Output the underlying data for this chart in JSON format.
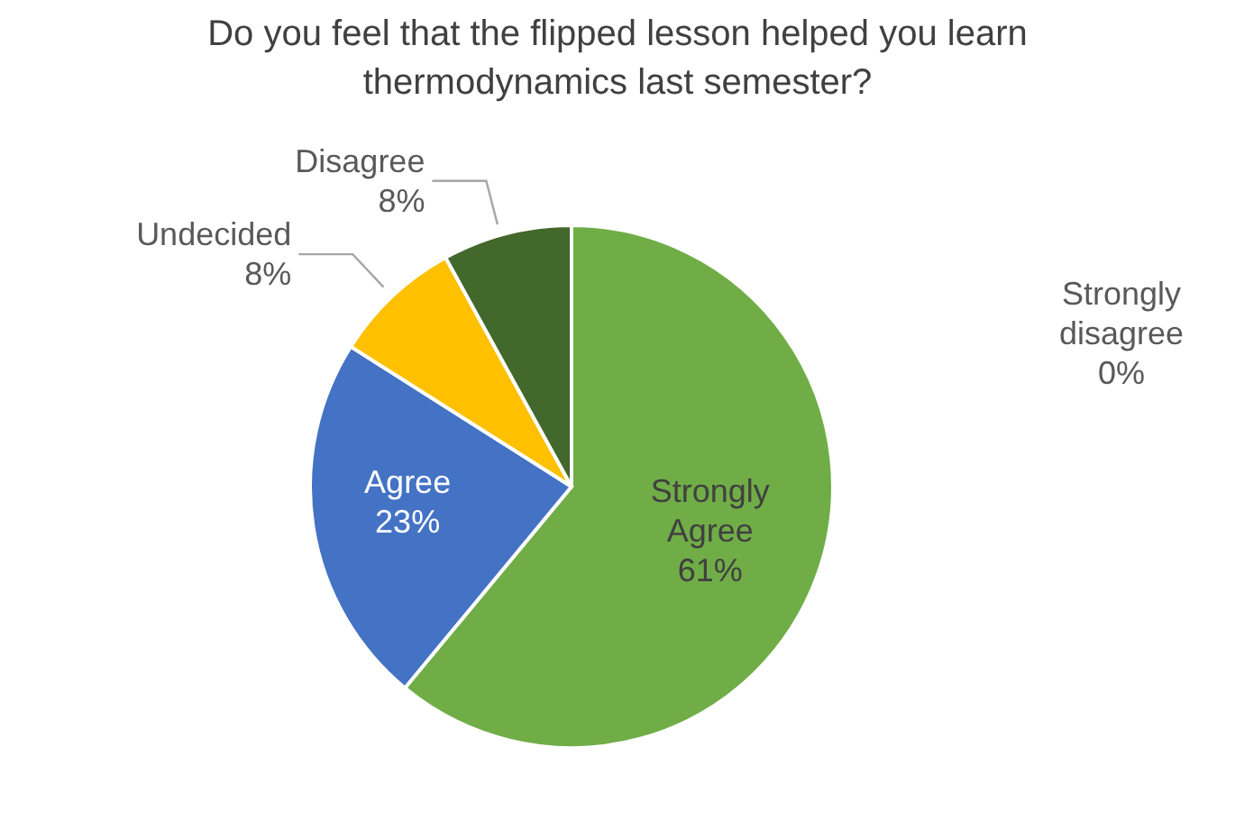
{
  "chart_data": {
    "type": "pie",
    "title": "Do you feel that the flipped lesson helped you learn thermodynamics last semester?",
    "categories": [
      "Strongly Agree",
      "Agree",
      "Undecided",
      "Disagree",
      "Strongly disagree"
    ],
    "values": [
      61,
      23,
      8,
      8,
      0
    ],
    "value_labels": [
      "61%",
      "23%",
      "8%",
      "8%",
      "0%"
    ],
    "colors": [
      "#70ad47",
      "#4472c4",
      "#ffc000",
      "#43682b",
      null
    ],
    "legend": false
  }
}
